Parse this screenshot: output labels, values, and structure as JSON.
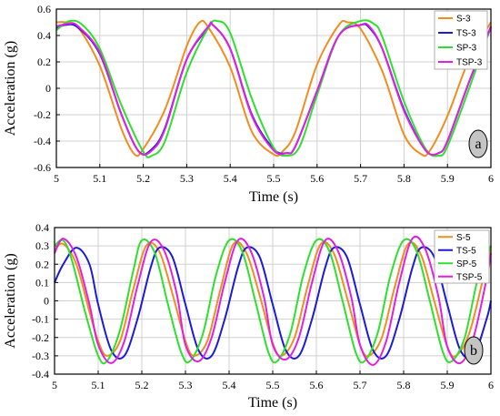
{
  "chart_data": [
    {
      "type": "line",
      "panel_label": "a",
      "xlabel": "Time (s)",
      "ylabel": "Acceleration (g)",
      "xlim": [
        5,
        6
      ],
      "ylim": [
        -0.6,
        0.6
      ],
      "xticks": [
        "5",
        "5.1",
        "5.2",
        "5.3",
        "5.4",
        "5.5",
        "5.6",
        "5.7",
        "5.8",
        "5.9",
        "6"
      ],
      "yticks": [
        "-0.6",
        "-0.4",
        "-0.2",
        "0",
        "0.2",
        "0.4",
        "0.6"
      ],
      "grid": true,
      "legend_position": "top-right",
      "series": [
        {
          "name": "S-3",
          "color": "#f28c1e",
          "x": [
            5.0,
            5.02,
            5.05,
            5.1,
            5.15,
            5.18,
            5.2,
            5.25,
            5.3,
            5.33,
            5.35,
            5.4,
            5.45,
            5.5,
            5.52,
            5.55,
            5.6,
            5.65,
            5.67,
            5.7,
            5.75,
            5.8,
            5.84,
            5.86,
            5.9,
            5.95,
            6.0
          ],
          "y": [
            0.5,
            0.5,
            0.46,
            0.17,
            -0.31,
            -0.5,
            -0.46,
            -0.16,
            0.32,
            0.5,
            0.46,
            0.16,
            -0.33,
            -0.5,
            -0.48,
            -0.33,
            0.18,
            0.48,
            0.5,
            0.45,
            0.13,
            -0.35,
            -0.5,
            -0.47,
            -0.21,
            0.22,
            0.5
          ]
        },
        {
          "name": "TS-3",
          "color": "#1a1adb",
          "x": [
            5.0,
            5.02,
            5.05,
            5.1,
            5.15,
            5.19,
            5.22,
            5.25,
            5.3,
            5.35,
            5.36,
            5.4,
            5.45,
            5.5,
            5.53,
            5.55,
            5.6,
            5.65,
            5.7,
            5.72,
            5.75,
            5.8,
            5.85,
            5.88,
            5.9,
            5.95,
            6.0
          ],
          "y": [
            0.45,
            0.48,
            0.46,
            0.26,
            -0.2,
            -0.48,
            -0.46,
            -0.3,
            0.22,
            0.46,
            0.48,
            0.3,
            -0.2,
            -0.46,
            -0.49,
            -0.44,
            -0.02,
            0.4,
            0.48,
            0.46,
            0.3,
            -0.16,
            -0.47,
            -0.49,
            -0.4,
            0.05,
            0.46
          ]
        },
        {
          "name": "SP-3",
          "color": "#2ee02e",
          "x": [
            5.0,
            5.03,
            5.06,
            5.1,
            5.15,
            5.2,
            5.22,
            5.25,
            5.3,
            5.35,
            5.37,
            5.4,
            5.45,
            5.5,
            5.53,
            5.56,
            5.6,
            5.65,
            5.7,
            5.73,
            5.75,
            5.8,
            5.85,
            5.88,
            5.9,
            5.95,
            6.0
          ],
          "y": [
            0.44,
            0.51,
            0.48,
            0.3,
            -0.13,
            -0.48,
            -0.51,
            -0.4,
            0.12,
            0.46,
            0.51,
            0.42,
            -0.08,
            -0.45,
            -0.51,
            -0.44,
            -0.05,
            0.4,
            0.51,
            0.49,
            0.39,
            -0.1,
            -0.46,
            -0.51,
            -0.44,
            0.0,
            0.47
          ]
        },
        {
          "name": "TSP-3",
          "color": "#e21ee2",
          "x": [
            5.0,
            5.03,
            5.05,
            5.1,
            5.15,
            5.19,
            5.22,
            5.25,
            5.3,
            5.35,
            5.36,
            5.4,
            5.45,
            5.5,
            5.53,
            5.55,
            5.6,
            5.65,
            5.7,
            5.72,
            5.75,
            5.8,
            5.85,
            5.88,
            5.9,
            5.95,
            6.0
          ],
          "y": [
            0.47,
            0.49,
            0.47,
            0.27,
            -0.2,
            -0.48,
            -0.47,
            -0.31,
            0.22,
            0.47,
            0.48,
            0.3,
            -0.21,
            -0.47,
            -0.49,
            -0.44,
            -0.02,
            0.4,
            0.48,
            0.47,
            0.3,
            -0.17,
            -0.47,
            -0.49,
            -0.4,
            0.05,
            0.47
          ]
        }
      ]
    },
    {
      "type": "line",
      "panel_label": "b",
      "xlabel": "Time (s)",
      "ylabel": "Acceleration (g)",
      "xlim": [
        5,
        6
      ],
      "ylim": [
        -0.4,
        0.4
      ],
      "xticks": [
        "5",
        "5.1",
        "5.2",
        "5.3",
        "5.4",
        "5.5",
        "5.6",
        "5.7",
        "5.8",
        "5.9",
        "6"
      ],
      "yticks": [
        "-0.4",
        "-0.3",
        "-0.2",
        "-0.1",
        "0",
        "0.1",
        "0.2",
        "0.3",
        "0.4"
      ],
      "grid": true,
      "legend_position": "top-right",
      "series": [
        {
          "name": "S-5",
          "color": "#f28c1e",
          "x": [
            5.0,
            5.02,
            5.05,
            5.08,
            5.1,
            5.12,
            5.15,
            5.18,
            5.21,
            5.24,
            5.27,
            5.3,
            5.32,
            5.35,
            5.38,
            5.41,
            5.44,
            5.47,
            5.5,
            5.52,
            5.55,
            5.58,
            5.61,
            5.64,
            5.67,
            5.7,
            5.72,
            5.75,
            5.78,
            5.81,
            5.84,
            5.87,
            5.9,
            5.92,
            5.95,
            5.98,
            6.0
          ],
          "y": [
            0.28,
            0.31,
            0.2,
            -0.06,
            -0.22,
            -0.3,
            -0.22,
            0.06,
            0.3,
            0.27,
            0.04,
            -0.22,
            -0.3,
            -0.22,
            0.06,
            0.31,
            0.26,
            0.03,
            -0.23,
            -0.3,
            -0.2,
            0.08,
            0.31,
            0.26,
            0.02,
            -0.24,
            -0.3,
            -0.2,
            0.08,
            0.31,
            0.25,
            0.0,
            -0.25,
            -0.3,
            -0.18,
            0.1,
            0.3
          ]
        },
        {
          "name": "TS-5",
          "color": "#1a1adb",
          "x": [
            5.0,
            5.02,
            5.05,
            5.08,
            5.1,
            5.13,
            5.16,
            5.19,
            5.22,
            5.24,
            5.27,
            5.3,
            5.33,
            5.36,
            5.39,
            5.42,
            5.44,
            5.47,
            5.5,
            5.53,
            5.56,
            5.59,
            5.62,
            5.64,
            5.67,
            5.7,
            5.73,
            5.76,
            5.79,
            5.82,
            5.84,
            5.87,
            5.9,
            5.93,
            5.96,
            5.99,
            6.0
          ],
          "y": [
            0.1,
            0.2,
            0.29,
            0.2,
            -0.02,
            -0.27,
            -0.3,
            -0.1,
            0.18,
            0.29,
            0.24,
            -0.02,
            -0.27,
            -0.3,
            -0.1,
            0.18,
            0.29,
            0.24,
            -0.02,
            -0.27,
            -0.3,
            -0.1,
            0.18,
            0.29,
            0.24,
            -0.02,
            -0.27,
            -0.3,
            -0.1,
            0.18,
            0.29,
            0.24,
            -0.02,
            -0.27,
            -0.3,
            -0.1,
            0.0
          ]
        },
        {
          "name": "SP-5",
          "color": "#2ee02e",
          "x": [
            5.0,
            5.02,
            5.04,
            5.07,
            5.1,
            5.12,
            5.15,
            5.18,
            5.2,
            5.23,
            5.26,
            5.29,
            5.31,
            5.34,
            5.37,
            5.4,
            5.43,
            5.46,
            5.49,
            5.51,
            5.54,
            5.57,
            5.6,
            5.63,
            5.66,
            5.69,
            5.71,
            5.74,
            5.77,
            5.8,
            5.83,
            5.86,
            5.89,
            5.91,
            5.94,
            5.97,
            6.0
          ],
          "y": [
            0.3,
            0.33,
            0.22,
            -0.06,
            -0.3,
            -0.33,
            -0.16,
            0.16,
            0.33,
            0.26,
            -0.02,
            -0.28,
            -0.33,
            -0.18,
            0.14,
            0.33,
            0.27,
            0.0,
            -0.28,
            -0.33,
            -0.18,
            0.14,
            0.33,
            0.27,
            0.0,
            -0.28,
            -0.33,
            -0.18,
            0.14,
            0.33,
            0.27,
            0.0,
            -0.28,
            -0.33,
            -0.2,
            0.12,
            0.3
          ]
        },
        {
          "name": "TSP-5",
          "color": "#e21ee2",
          "x": [
            5.0,
            5.02,
            5.05,
            5.08,
            5.1,
            5.13,
            5.16,
            5.19,
            5.22,
            5.25,
            5.28,
            5.3,
            5.33,
            5.36,
            5.39,
            5.42,
            5.45,
            5.48,
            5.5,
            5.53,
            5.56,
            5.59,
            5.62,
            5.65,
            5.68,
            5.7,
            5.73,
            5.76,
            5.79,
            5.82,
            5.85,
            5.88,
            5.9,
            5.93,
            5.96,
            5.99,
            6.0
          ],
          "y": [
            0.26,
            0.34,
            0.24,
            -0.02,
            -0.24,
            -0.34,
            -0.22,
            0.08,
            0.32,
            0.28,
            0.04,
            -0.24,
            -0.33,
            -0.2,
            0.1,
            0.33,
            0.27,
            0.02,
            -0.24,
            -0.32,
            -0.2,
            0.1,
            0.33,
            0.27,
            0.02,
            -0.24,
            -0.35,
            -0.22,
            0.1,
            0.34,
            0.28,
            0.02,
            -0.25,
            -0.34,
            -0.2,
            0.12,
            0.26
          ]
        }
      ]
    }
  ]
}
